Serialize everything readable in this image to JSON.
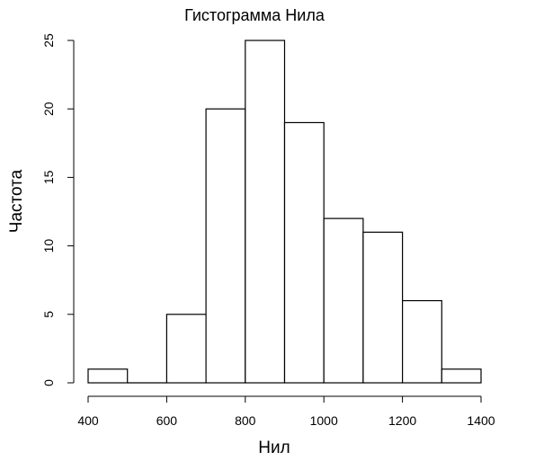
{
  "chart_data": {
    "type": "bar",
    "subtype": "histogram",
    "title": "Гистограмма Нила",
    "xlabel": "Нил",
    "ylabel": "Частота",
    "bins": [
      {
        "from": 400,
        "to": 500,
        "count": 1
      },
      {
        "from": 500,
        "to": 600,
        "count": 0
      },
      {
        "from": 600,
        "to": 700,
        "count": 5
      },
      {
        "from": 700,
        "to": 800,
        "count": 20
      },
      {
        "from": 800,
        "to": 900,
        "count": 25
      },
      {
        "from": 900,
        "to": 1000,
        "count": 19
      },
      {
        "from": 1000,
        "to": 1100,
        "count": 12
      },
      {
        "from": 1100,
        "to": 1200,
        "count": 11
      },
      {
        "from": 1200,
        "to": 1300,
        "count": 6
      },
      {
        "from": 1300,
        "to": 1400,
        "count": 1
      }
    ],
    "xlim": [
      400,
      1400
    ],
    "ylim": [
      0,
      25
    ],
    "x_ticks": [
      "400",
      "600",
      "800",
      "1000",
      "1200",
      "1400"
    ],
    "y_ticks": [
      "0",
      "5",
      "10",
      "15",
      "20",
      "25"
    ],
    "grid": false,
    "bar_fill": "#ffffff",
    "bar_stroke": "#000000"
  }
}
